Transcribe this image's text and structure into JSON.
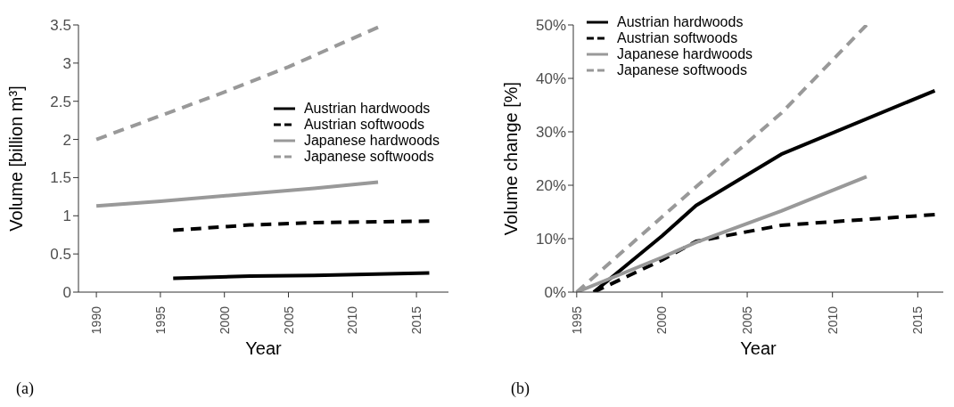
{
  "chart_data": [
    {
      "type": "line",
      "xlabel": "Year",
      "ylabel": "Volume [billion m³]",
      "xlim": [
        1988.6,
        2017.5
      ],
      "xticks": [
        1990,
        1995,
        2000,
        2005,
        2010,
        2015
      ],
      "ylim": [
        0,
        3.5
      ],
      "yticks": [
        0,
        0.5,
        1,
        1.5,
        2,
        2.5,
        3,
        3.5
      ],
      "grid": false,
      "legend": "right",
      "annotations": [
        "(a)"
      ],
      "series": [
        {
          "name": "Austrian hardwoods",
          "color": "#000000",
          "line_style": "solid",
          "x": [
            1996,
            2002,
            2007,
            2016
          ],
          "values": [
            0.18,
            0.21,
            0.22,
            0.25
          ]
        },
        {
          "name": "Austrian softwoods",
          "color": "#000000",
          "line_style": "dashed",
          "x": [
            1996,
            2002,
            2007,
            2016
          ],
          "values": [
            0.81,
            0.88,
            0.91,
            0.93
          ]
        },
        {
          "name": "Japanese hardwoods",
          "color": "#999999",
          "line_style": "solid",
          "x": [
            1990,
            1995,
            2002,
            2007,
            2012
          ],
          "values": [
            1.13,
            1.19,
            1.29,
            1.36,
            1.44
          ]
        },
        {
          "name": "Japanese softwoods",
          "color": "#999999",
          "line_style": "dashed",
          "x": [
            1990,
            1995,
            2000,
            2005,
            2012
          ],
          "values": [
            2.0,
            2.31,
            2.62,
            2.95,
            3.47
          ]
        }
      ]
    },
    {
      "type": "line",
      "xlabel": "Year",
      "ylabel": "Volume change [%]",
      "xlim": [
        1994.8,
        2016.5
      ],
      "xticks": [
        1995,
        2000,
        2005,
        2010,
        2015
      ],
      "ylim": [
        0,
        50
      ],
      "yticks": [
        {
          "value": 0,
          "label": "0%"
        },
        {
          "value": 10,
          "label": "10%"
        },
        {
          "value": 20,
          "label": "20%"
        },
        {
          "value": 30,
          "label": "30%"
        },
        {
          "value": 40,
          "label": "40%"
        },
        {
          "value": 50,
          "label": "50%"
        }
      ],
      "grid": false,
      "legend": "top left",
      "annotations": [
        "(b)"
      ],
      "series": [
        {
          "name": "Austrian hardwoods",
          "color": "#000000",
          "line_style": "solid",
          "x": [
            1996,
            2000,
            2002,
            2007,
            2016
          ],
          "values": [
            0,
            10.5,
            16.2,
            25.8,
            37.7
          ]
        },
        {
          "name": "Austrian softwoods",
          "color": "#000000",
          "line_style": "dashed",
          "x": [
            1996,
            2000,
            2002,
            2007,
            2016
          ],
          "values": [
            0,
            6,
            9.5,
            12.5,
            14.5
          ]
        },
        {
          "name": "Japanese hardwoods",
          "color": "#999999",
          "line_style": "solid",
          "x": [
            1995,
            2000,
            2002,
            2007,
            2012
          ],
          "values": [
            0,
            6.5,
            9.3,
            15.2,
            21.6
          ]
        },
        {
          "name": "Japanese softwoods",
          "color": "#999999",
          "line_style": "dashed",
          "x": [
            1995,
            2002,
            2007,
            2012
          ],
          "values": [
            0,
            19.7,
            33.5,
            50
          ]
        }
      ]
    }
  ]
}
